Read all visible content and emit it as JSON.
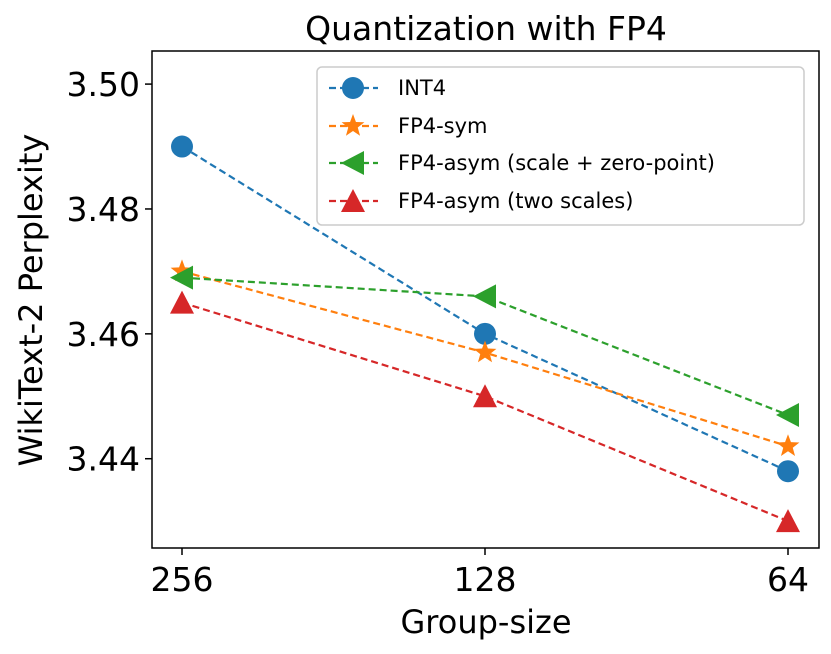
{
  "chart_data": {
    "type": "line",
    "title": "Quantization with FP4",
    "xlabel": "Group-size",
    "ylabel": "WikiText-2 Perplexity",
    "categories": [
      "256",
      "128",
      "64"
    ],
    "ylim": [
      3.4257,
      3.5053
    ],
    "yticks": [
      3.44,
      3.46,
      3.48,
      3.5
    ],
    "ytick_labels": [
      "3.44",
      "3.46",
      "3.48",
      "3.50"
    ],
    "grid": false,
    "legend_position": "top-right",
    "series": [
      {
        "name": "INT4",
        "marker": "circle",
        "color": "#1f77b4",
        "values": [
          3.49,
          3.46,
          3.438
        ]
      },
      {
        "name": "FP4-sym",
        "marker": "star",
        "color": "#ff7f0e",
        "values": [
          3.47,
          3.457,
          3.442
        ]
      },
      {
        "name": "FP4-asym (scale + zero-point)",
        "marker": "triangle-left",
        "color": "#2ca02c",
        "values": [
          3.469,
          3.466,
          3.447
        ]
      },
      {
        "name": "FP4-asym (two scales)",
        "marker": "triangle-up",
        "color": "#d62728",
        "values": [
          3.465,
          3.45,
          3.43
        ]
      }
    ]
  }
}
